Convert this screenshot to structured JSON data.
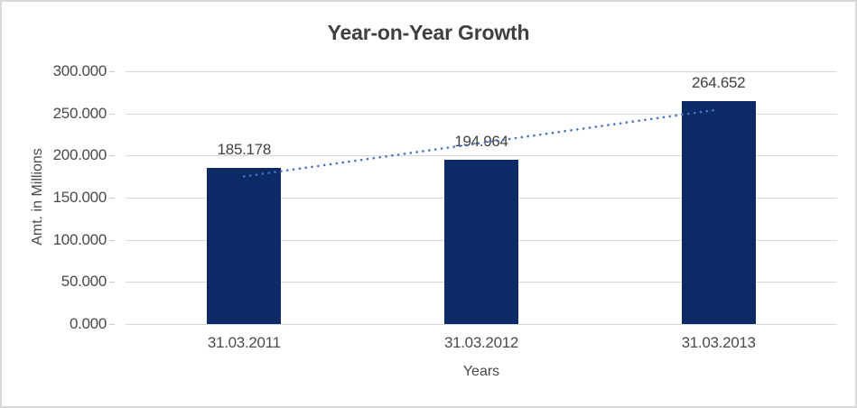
{
  "window": {
    "background": "#ffffff",
    "border_color": "#d8d8d8"
  },
  "chart_data": {
    "type": "bar",
    "title": "Year-on-Year Growth",
    "xlabel": "Years",
    "ylabel": "Amt. in Millions",
    "categories": [
      "31.03.2011",
      "31.03.2012",
      "31.03.2013"
    ],
    "values": [
      185.178,
      194.964,
      264.652
    ],
    "data_labels": [
      "185.178",
      "194.964",
      "264.652"
    ],
    "y_ticks": [
      "0.000",
      "50.000",
      "100.000",
      "150.000",
      "200.000",
      "250.000",
      "300.000"
    ],
    "ylim": [
      0,
      300
    ],
    "grid": true,
    "legend": "none",
    "bar_color": "#0b2a66",
    "trendline": {
      "type": "linear",
      "style": "dotted",
      "color": "#4472c4"
    },
    "colors": {
      "gridline": "#d9d9d9",
      "title_text": "#3f3f3f",
      "axis_text": "#4a4a4a",
      "data_label_text": "#404040"
    }
  }
}
